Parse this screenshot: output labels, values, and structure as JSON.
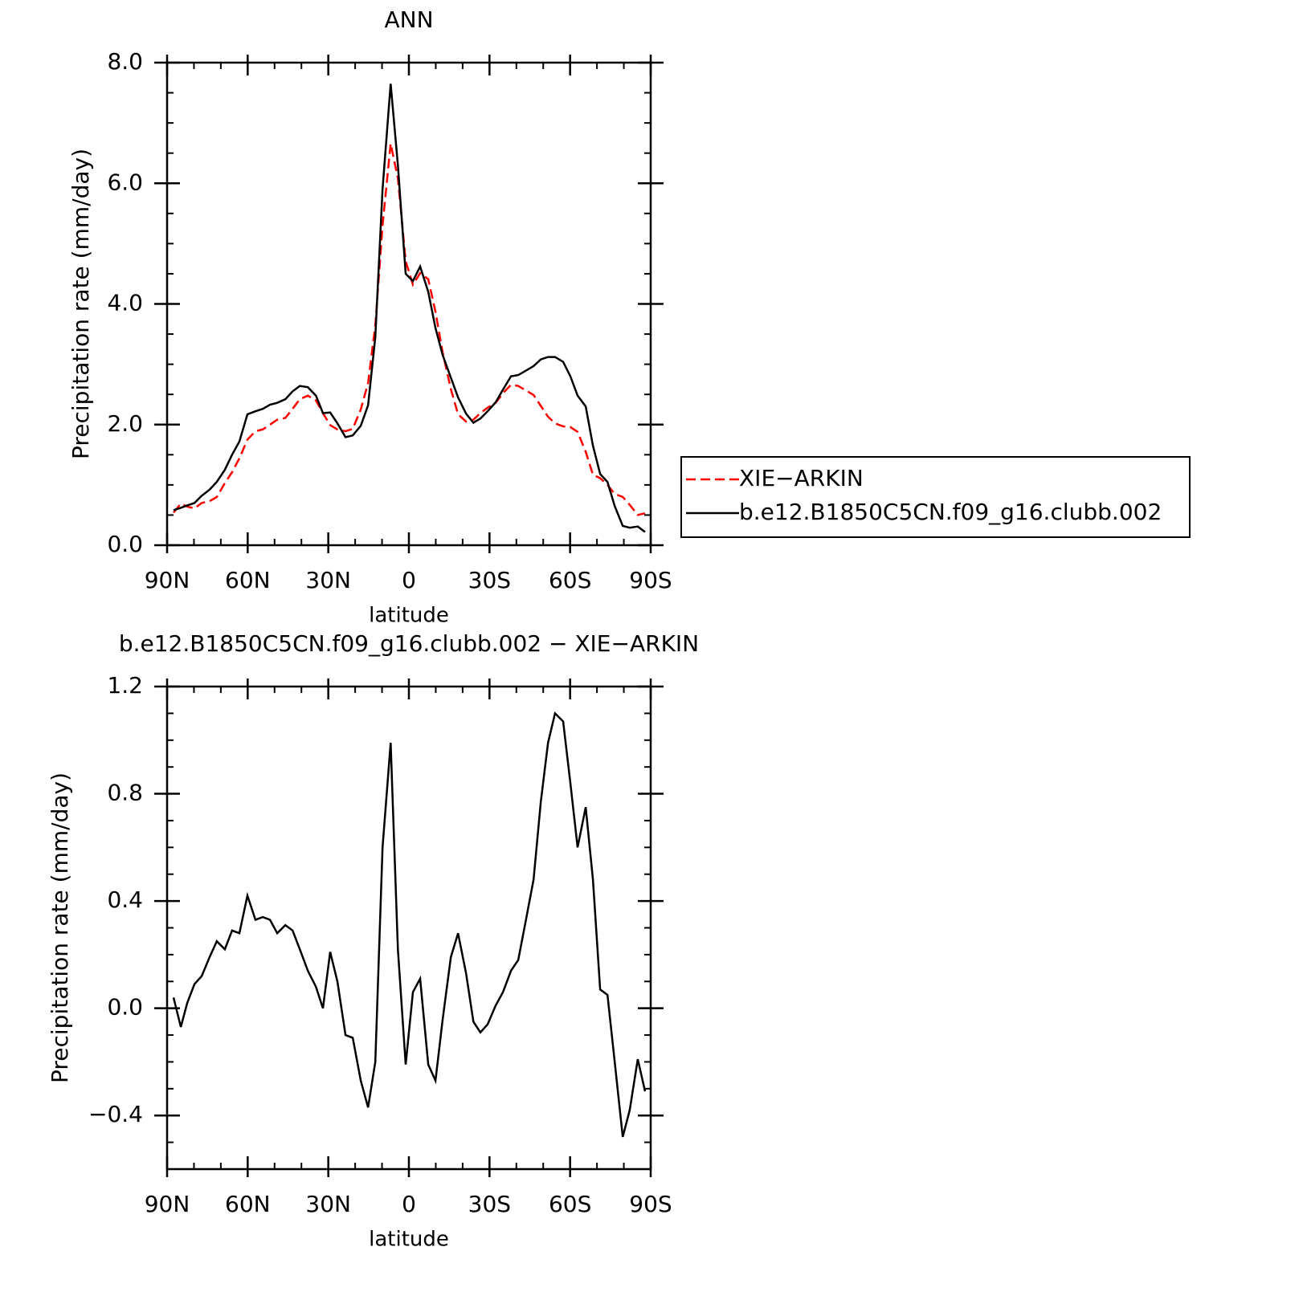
{
  "chart_data": [
    {
      "type": "line",
      "title": "ANN",
      "xlabel": "latitude",
      "ylabel": "Precipitation rate (mm/day)",
      "x": [
        87.6,
        84.9,
        82.5,
        79.8,
        77.1,
        74.2,
        71.5,
        68.5,
        65.8,
        63.1,
        60.1,
        57.1,
        54.4,
        51.7,
        49.0,
        46.0,
        43.3,
        40.6,
        37.6,
        34.6,
        32.0,
        29.3,
        26.6,
        23.6,
        20.9,
        17.9,
        15.2,
        12.5,
        9.8,
        6.8,
        4.1,
        1.2,
        -1.5,
        -4.2,
        -7.2,
        -9.9,
        -12.6,
        -15.6,
        -18.3,
        -21.3,
        -24.0,
        -26.6,
        -29.3,
        -32.3,
        -35.0,
        -38.0,
        -40.7,
        -43.4,
        -46.4,
        -49.1,
        -51.8,
        -54.4,
        -57.4,
        -60.1,
        -62.8,
        -65.8,
        -68.5,
        -71.2,
        -73.9,
        -76.6,
        -79.6,
        -82.2,
        -85.2,
        -87.9
      ],
      "series": [
        {
          "name": "XIE−ARKIN",
          "color": "#ff0000",
          "dash": true,
          "values": [
            0.54,
            0.69,
            0.64,
            0.61,
            0.7,
            0.73,
            0.8,
            1.03,
            1.21,
            1.44,
            1.75,
            1.89,
            1.92,
            2.0,
            2.08,
            2.11,
            2.26,
            2.42,
            2.48,
            2.4,
            2.19,
            1.99,
            1.92,
            1.89,
            1.93,
            2.25,
            2.69,
            3.65,
            5.3,
            6.66,
            6.08,
            4.71,
            4.32,
            4.51,
            4.41,
            3.87,
            3.19,
            2.59,
            2.17,
            2.05,
            2.08,
            2.19,
            2.28,
            2.36,
            2.52,
            2.66,
            2.64,
            2.57,
            2.49,
            2.31,
            2.13,
            2.02,
            1.97,
            1.96,
            1.88,
            1.55,
            1.17,
            1.11,
            1.0,
            0.85,
            0.8,
            0.67,
            0.5,
            0.53
          ]
        },
        {
          "name": "b.e12.B1850C5CN.f09_g16.clubb.002",
          "color": "#000000",
          "dash": false,
          "values": [
            0.58,
            0.62,
            0.66,
            0.7,
            0.82,
            0.92,
            1.05,
            1.25,
            1.5,
            1.72,
            2.17,
            2.22,
            2.26,
            2.33,
            2.36,
            2.42,
            2.55,
            2.64,
            2.62,
            2.48,
            2.19,
            2.2,
            2.02,
            1.79,
            1.82,
            1.98,
            2.32,
            3.45,
            5.9,
            7.65,
            6.3,
            4.5,
            4.38,
            4.62,
            4.2,
            3.6,
            3.15,
            2.78,
            2.45,
            2.18,
            2.03,
            2.1,
            2.22,
            2.37,
            2.58,
            2.8,
            2.82,
            2.89,
            2.97,
            3.08,
            3.12,
            3.12,
            3.04,
            2.8,
            2.48,
            2.3,
            1.65,
            1.18,
            1.05,
            0.65,
            0.32,
            0.29,
            0.31,
            0.22
          ]
        }
      ],
      "xlim": [
        90,
        -90
      ],
      "xticks": [
        {
          "value": 90,
          "label": "90N"
        },
        {
          "value": 60,
          "label": "60N"
        },
        {
          "value": 30,
          "label": "30N"
        },
        0,
        {
          "value": -30,
          "label": "30S"
        },
        {
          "value": -60,
          "label": "60S"
        },
        {
          "value": -90,
          "label": "90S"
        }
      ],
      "xminorticks": [
        80,
        70,
        50,
        40,
        20,
        10,
        -10,
        -20,
        -40,
        -50,
        -70,
        -80
      ],
      "ylim": [
        0,
        8
      ],
      "yticks": [
        {
          "value": 0,
          "label": "0.0"
        },
        {
          "value": 2,
          "label": "2.0"
        },
        {
          "value": 4,
          "label": "4.0"
        },
        {
          "value": 6,
          "label": "6.0"
        },
        {
          "value": 8,
          "label": "8.0"
        }
      ],
      "yminorticks": [
        0.5,
        1,
        1.5,
        2.5,
        3,
        3.5,
        4.5,
        5,
        5.5,
        6.5,
        7,
        7.5
      ],
      "legend": "right"
    },
    {
      "type": "line",
      "title": "b.e12.B1850C5CN.f09_g16.clubb.002 − XIE−ARKIN",
      "xlabel": "latitude",
      "ylabel": "Precipitation rate (mm/day)",
      "x": [
        87.6,
        84.9,
        82.5,
        79.8,
        77.1,
        74.2,
        71.5,
        68.5,
        65.8,
        63.1,
        60.1,
        57.1,
        54.4,
        51.7,
        49.0,
        46.0,
        43.3,
        40.6,
        37.6,
        34.6,
        32.0,
        29.3,
        26.6,
        23.6,
        20.9,
        17.9,
        15.2,
        12.5,
        9.8,
        6.8,
        4.1,
        1.2,
        -1.5,
        -4.2,
        -7.2,
        -9.9,
        -12.6,
        -15.6,
        -18.3,
        -21.3,
        -24.0,
        -26.6,
        -29.3,
        -32.3,
        -35.0,
        -38.0,
        -40.7,
        -43.4,
        -46.4,
        -49.1,
        -51.8,
        -54.4,
        -57.4,
        -60.1,
        -62.8,
        -65.8,
        -68.5,
        -71.2,
        -73.9,
        -76.6,
        -79.6,
        -82.2,
        -85.2,
        -87.9
      ],
      "series": [
        {
          "color": "#000000",
          "dash": false,
          "values": [
            0.04,
            -0.07,
            0.02,
            0.09,
            0.12,
            0.19,
            0.25,
            0.22,
            0.29,
            0.28,
            0.42,
            0.33,
            0.34,
            0.33,
            0.28,
            0.31,
            0.29,
            0.22,
            0.14,
            0.08,
            0.0,
            0.21,
            0.1,
            -0.1,
            -0.11,
            -0.27,
            -0.37,
            -0.2,
            0.6,
            0.99,
            0.22,
            -0.21,
            0.06,
            0.11,
            -0.21,
            -0.27,
            -0.04,
            0.19,
            0.28,
            0.13,
            -0.05,
            -0.09,
            -0.06,
            0.01,
            0.06,
            0.14,
            0.18,
            0.32,
            0.48,
            0.77,
            0.99,
            1.1,
            1.07,
            0.84,
            0.6,
            0.75,
            0.48,
            0.07,
            0.05,
            -0.2,
            -0.48,
            -0.38,
            -0.19,
            -0.31
          ]
        }
      ],
      "xlim": [
        90,
        -90
      ],
      "xticks": [
        {
          "value": 90,
          "label": "90N"
        },
        {
          "value": 60,
          "label": "60N"
        },
        {
          "value": 30,
          "label": "30N"
        },
        0,
        {
          "value": -30,
          "label": "30S"
        },
        {
          "value": -60,
          "label": "60S"
        },
        {
          "value": -90,
          "label": "90S"
        }
      ],
      "xminorticks": [
        80,
        70,
        50,
        40,
        20,
        10,
        -10,
        -20,
        -40,
        -50,
        -70,
        -80
      ],
      "ylim": [
        -0.6,
        1.2
      ],
      "yticks": [
        {
          "value": -0.4,
          "label": "−0.4"
        },
        {
          "value": 0,
          "label": "0.0"
        },
        0.4,
        0.8,
        1.2
      ],
      "yminorticks": [
        -0.5,
        -0.3,
        -0.2,
        -0.1,
        0.1,
        0.2,
        0.3,
        0.5,
        0.6,
        0.7,
        0.9,
        1.0,
        1.1
      ]
    }
  ]
}
